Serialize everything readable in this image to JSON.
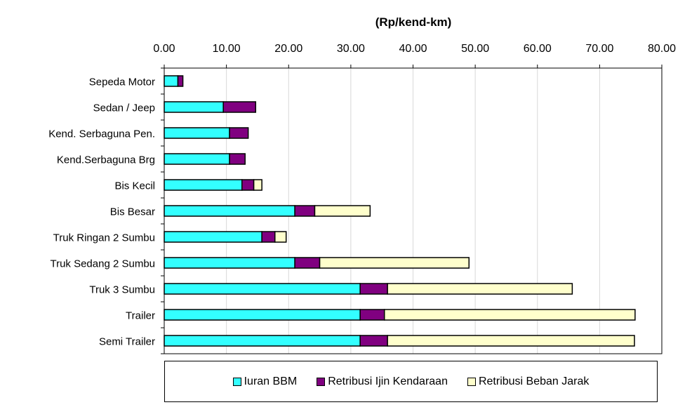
{
  "chart_data": {
    "type": "bar",
    "orientation": "horizontal",
    "stacked": true,
    "title": "(Rp/kend-km)",
    "xlabel": "(Rp/kend-km)",
    "ylabel": "",
    "xlim": [
      0,
      80
    ],
    "ticks": [
      "0.00",
      "10.00",
      "20.00",
      "30.00",
      "40.00",
      "50.00",
      "60.00",
      "70.00",
      "80.00"
    ],
    "grid": true,
    "legend_position": "bottom",
    "categories": [
      "Sepeda Motor",
      "Sedan / Jeep",
      "Kend. Serbaguna Pen.",
      "Kend.Serbaguna Brg",
      "Bis Kecil",
      "Bis Besar",
      "Truk Ringan 2 Sumbu",
      "Truk Sedang 2 Sumbu",
      "Truk 3 Sumbu",
      "Trailer",
      "Semi Trailer"
    ],
    "series": [
      {
        "name": "Iuran BBM",
        "color": "#33ffff",
        "values": [
          2.2,
          9.5,
          10.5,
          10.5,
          12.5,
          21.0,
          15.7,
          21.0,
          31.5,
          31.5,
          31.5
        ]
      },
      {
        "name": "Retribusi Ijin Kendaraan",
        "color": "#800080",
        "values": [
          0.8,
          5.2,
          3.0,
          2.5,
          1.9,
          3.2,
          2.1,
          4.0,
          4.4,
          3.9,
          4.4
        ]
      },
      {
        "name": "Retribusi Beban Jarak",
        "color": "#ffffcc",
        "values": [
          0.0,
          0.0,
          0.0,
          0.0,
          1.3,
          8.9,
          1.8,
          24.0,
          29.7,
          40.3,
          39.7
        ]
      }
    ]
  }
}
